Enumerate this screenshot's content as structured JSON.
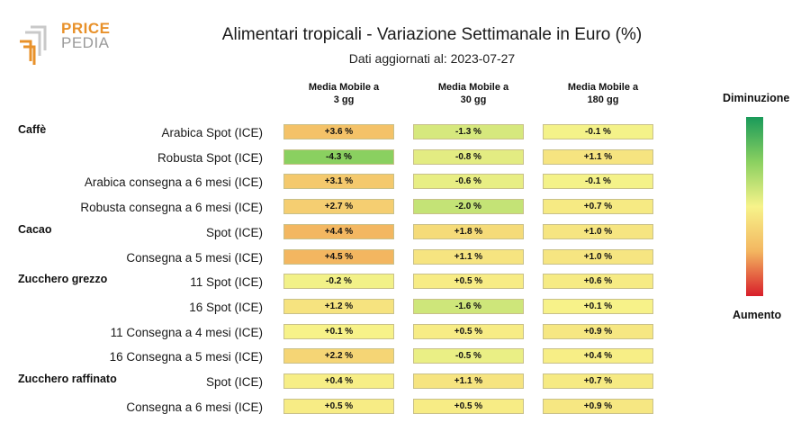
{
  "logo": {
    "line1": "PRICE",
    "line2": "PEDIA"
  },
  "colors": {
    "increase": "#f3b660",
    "neutral": "#f7f38a",
    "decrease": "#8ad060",
    "strong_increase": "#d81e2a",
    "strong_decrease": "#1a9a5a"
  },
  "chart_data": {
    "type": "table",
    "title": "Alimentari tropicali - Variazione Settimanale in Euro (%)",
    "subtitle": "Dati aggiornati al: 2023-07-27",
    "columns": [
      {
        "line1": "Media Mobile a",
        "line2": "3 gg"
      },
      {
        "line1": "Media Mobile a",
        "line2": "30 gg"
      },
      {
        "line1": "Media Mobile a",
        "line2": "180 gg"
      }
    ],
    "groups": [
      {
        "name": "Caffè",
        "rows": [
          {
            "label": "Arabica Spot (ICE)",
            "values": [
              3.6,
              -1.3,
              -0.1
            ],
            "text": [
              "+3.6 %",
              "-1.3 %",
              "-0.1 %"
            ]
          },
          {
            "label": "Robusta Spot (ICE)",
            "values": [
              -4.3,
              -0.8,
              1.1
            ],
            "text": [
              "-4.3 %",
              "-0.8 %",
              "+1.1 %"
            ]
          },
          {
            "label": "Arabica consegna a 6 mesi (ICE)",
            "values": [
              3.1,
              -0.6,
              -0.1
            ],
            "text": [
              "+3.1 %",
              "-0.6 %",
              "-0.1 %"
            ]
          },
          {
            "label": "Robusta consegna a 6 mesi (ICE)",
            "values": [
              2.7,
              -2.0,
              0.7
            ],
            "text": [
              "+2.7 %",
              "-2.0 %",
              "+0.7 %"
            ]
          }
        ]
      },
      {
        "name": "Cacao",
        "rows": [
          {
            "label": "Spot (ICE)",
            "values": [
              4.4,
              1.8,
              1.0
            ],
            "text": [
              "+4.4 %",
              "+1.8 %",
              "+1.0 %"
            ]
          },
          {
            "label": "Consegna a 5 mesi (ICE)",
            "values": [
              4.5,
              1.1,
              1.0
            ],
            "text": [
              "+4.5 %",
              "+1.1 %",
              "+1.0 %"
            ]
          }
        ]
      },
      {
        "name": "Zucchero grezzo",
        "rows": [
          {
            "label": "11 Spot (ICE)",
            "values": [
              -0.2,
              0.5,
              0.6
            ],
            "text": [
              "-0.2 %",
              "+0.5 %",
              "+0.6 %"
            ]
          },
          {
            "label": "16 Spot (ICE)",
            "values": [
              1.2,
              -1.6,
              0.1
            ],
            "text": [
              "+1.2 %",
              "-1.6 %",
              "+0.1 %"
            ]
          },
          {
            "label": "11 Consegna a 4 mesi (ICE)",
            "values": [
              0.1,
              0.5,
              0.9
            ],
            "text": [
              "+0.1 %",
              "+0.5 %",
              "+0.9 %"
            ]
          },
          {
            "label": "16 Consegna a 5 mesi (ICE)",
            "values": [
              2.2,
              -0.5,
              0.4
            ],
            "text": [
              "+2.2 %",
              "-0.5 %",
              "+0.4 %"
            ]
          }
        ]
      },
      {
        "name": "Zucchero raffinato",
        "rows": [
          {
            "label": "Spot (ICE)",
            "values": [
              0.4,
              1.1,
              0.7
            ],
            "text": [
              "+0.4 %",
              "+1.1 %",
              "+0.7 %"
            ]
          },
          {
            "label": "Consegna a 6 mesi (ICE)",
            "values": [
              0.5,
              0.5,
              0.9
            ],
            "text": [
              "+0.5 %",
              "+0.5 %",
              "+0.9 %"
            ]
          }
        ]
      }
    ],
    "legend": {
      "top": "Diminuzione",
      "bottom": "Aumento"
    }
  }
}
